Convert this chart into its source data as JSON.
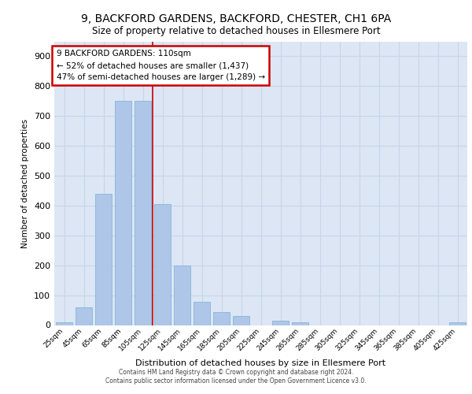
{
  "title1": "9, BACKFORD GARDENS, BACKFORD, CHESTER, CH1 6PA",
  "title2": "Size of property relative to detached houses in Ellesmere Port",
  "xlabel": "Distribution of detached houses by size in Ellesmere Port",
  "ylabel": "Number of detached properties",
  "bar_labels": [
    "25sqm",
    "45sqm",
    "65sqm",
    "85sqm",
    "105sqm",
    "125sqm",
    "145sqm",
    "165sqm",
    "185sqm",
    "205sqm",
    "225sqm",
    "245sqm",
    "265sqm",
    "285sqm",
    "305sqm",
    "325sqm",
    "345sqm",
    "365sqm",
    "385sqm",
    "405sqm",
    "425sqm"
  ],
  "bar_values": [
    10,
    60,
    440,
    750,
    750,
    405,
    200,
    78,
    44,
    30,
    0,
    15,
    10,
    0,
    0,
    0,
    0,
    0,
    0,
    0,
    8
  ],
  "bar_color": "#aec6e8",
  "bar_edge_color": "#7ab0d4",
  "vline_x_index": 4.5,
  "annotation_title": "9 BACKFORD GARDENS: 110sqm",
  "annotation_line1": "← 52% of detached houses are smaller (1,437)",
  "annotation_line2": "47% of semi-detached houses are larger (1,289) →",
  "annotation_box_color": "#ffffff",
  "annotation_box_edge": "#cc0000",
  "vline_color": "#cc0000",
  "grid_color": "#c8d4e8",
  "background_color": "#dce6f5",
  "ylim": [
    0,
    950
  ],
  "yticks": [
    0,
    100,
    200,
    300,
    400,
    500,
    600,
    700,
    800,
    900
  ],
  "footer1": "Contains HM Land Registry data © Crown copyright and database right 2024.",
  "footer2": "Contains public sector information licensed under the Open Government Licence v3.0."
}
